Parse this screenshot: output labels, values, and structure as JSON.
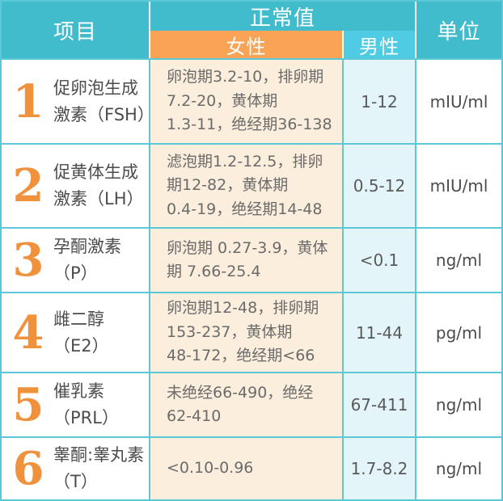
{
  "colors": {
    "teal": "#41bccc",
    "light-blue": "#4fcbe3",
    "orange": "#f8a355",
    "peach": "#fbeedd",
    "light-cyan": "#e4f5fa",
    "border": "#5cc8d7",
    "num-orange": "#f0913c"
  },
  "header": {
    "item": "项目",
    "normal": "正常值",
    "female": "女性",
    "male": "男性",
    "unit": "单位"
  },
  "rows": [
    {
      "num": "1",
      "name": "促卵泡生成\n激素（FSH）",
      "female": "卵泡期3.2-10，排卵期\n7.2-20，黄体期\n1.3-11，绝经期36-138",
      "male": "1-12",
      "unit": "mIU/ml"
    },
    {
      "num": "2",
      "name": "促黄体生成\n激素（LH）",
      "female": "滤泡期1.2-12.5，排卵\n期12-82，黄体期\n0.4-19，绝经期14-48",
      "male": "0.5-12",
      "unit": "mIU/ml"
    },
    {
      "num": "3",
      "name": "孕酮激素\n（P）",
      "female": "卵泡期 0.27-3.9，黄体\n期 7.66-25.4",
      "male": "<0.1",
      "unit": "ng/ml"
    },
    {
      "num": "4",
      "name": "雌二醇\n（E2）",
      "female": "卵泡期12-48，排卵期\n153-237，黄体期\n48-172，绝经期<66",
      "male": "11-44",
      "unit": "pg/ml"
    },
    {
      "num": "5",
      "name": "催乳素\n（PRL）",
      "female": "未绝经66-490，绝经\n62-410",
      "male": "67-411",
      "unit": "ng/ml"
    },
    {
      "num": "6",
      "name": "睾酮:睾丸素\n（T）",
      "female": "<0.10-0.96",
      "male": "1.7-8.2",
      "unit": "ng/ml"
    }
  ]
}
